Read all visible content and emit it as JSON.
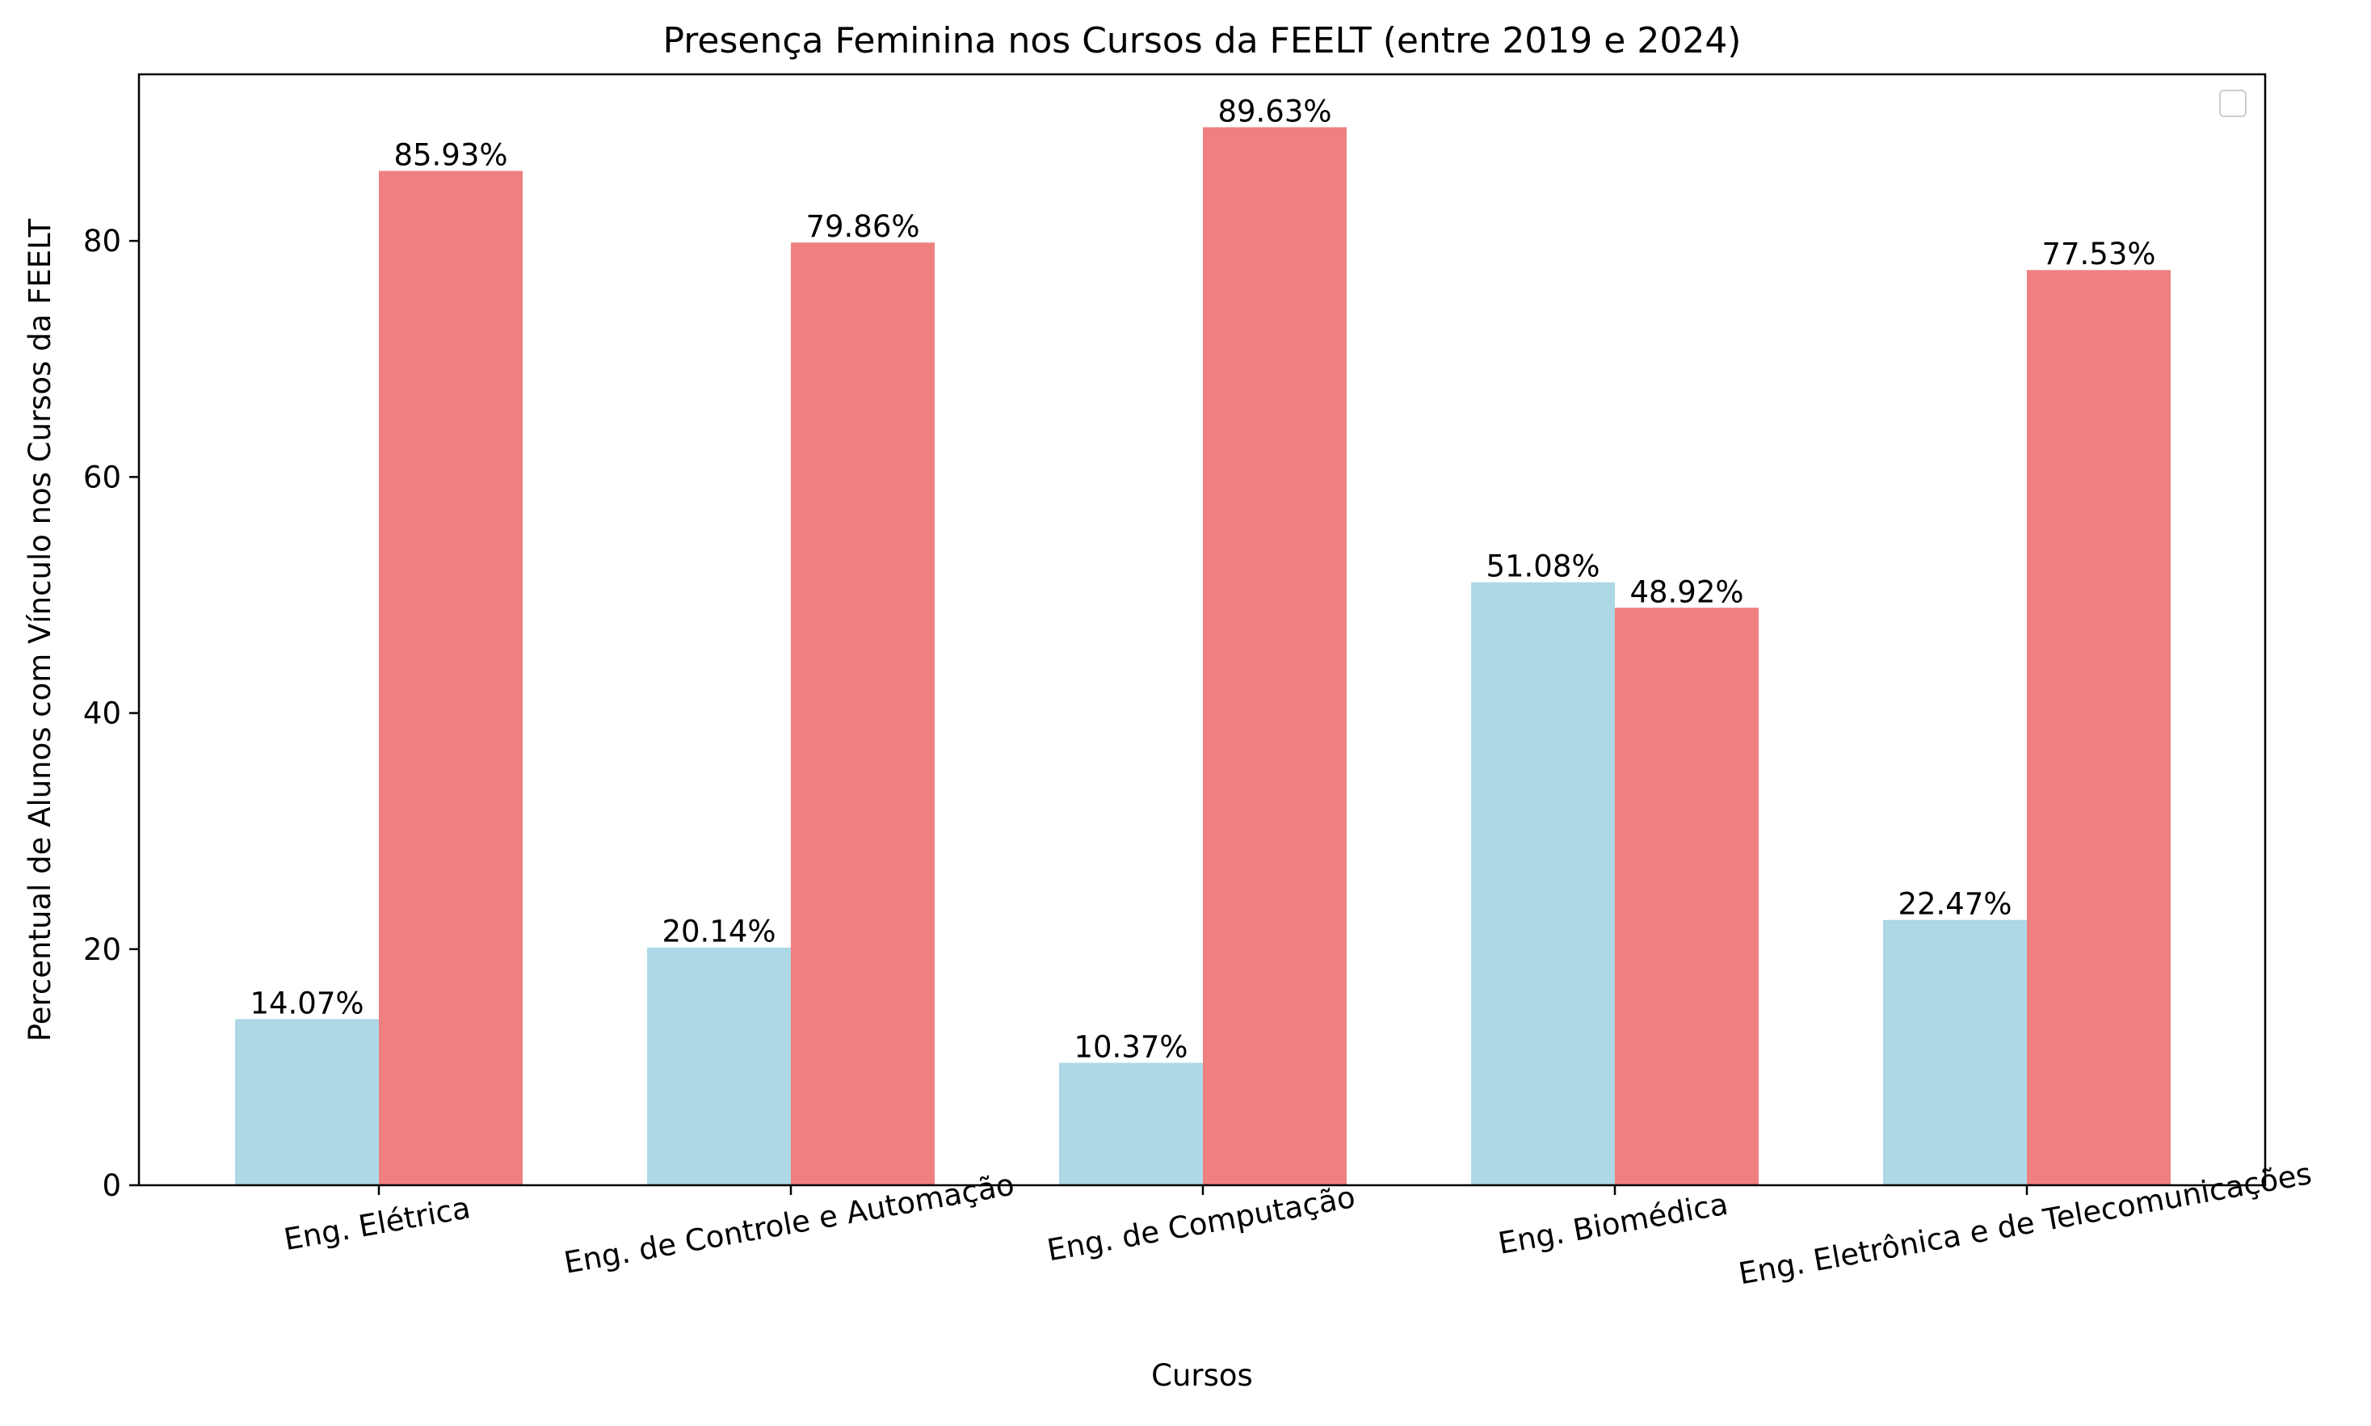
{
  "chart_data": {
    "type": "bar",
    "title": "Presença Feminina nos Cursos da FEELT (entre 2019 e 2024)",
    "xlabel": "Cursos",
    "ylabel": "Percentual de Alunos com Vínculo nos Cursos da FEELT",
    "categories": [
      "Eng. Elétrica",
      "Eng. de Controle e Automação",
      "Eng. de Computação",
      "Eng. Biomédica",
      "Eng. Eletrônica e de Telecomunicações"
    ],
    "series": [
      {
        "color": "#add8e6",
        "values": [
          14.07,
          20.14,
          10.37,
          51.08,
          22.47
        ],
        "labels": [
          "14.07%",
          "20.14%",
          "10.37%",
          "51.08%",
          "22.47%"
        ]
      },
      {
        "color": "#f08080",
        "values": [
          85.93,
          79.86,
          89.63,
          48.92,
          77.53
        ],
        "labels": [
          "85.93%",
          "79.86%",
          "89.63%",
          "48.92%",
          "77.53%"
        ]
      }
    ],
    "ylim": [
      0,
      94.11
    ],
    "yticks": [
      0,
      20,
      40,
      60,
      80
    ],
    "xtick_rotation_deg": -10,
    "grid": false,
    "legend": "top-right (empty)"
  }
}
